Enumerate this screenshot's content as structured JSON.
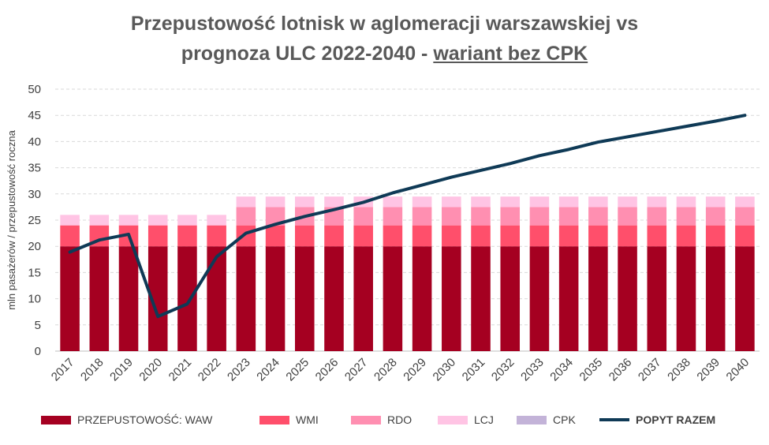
{
  "header": {
    "title_line1": "Przepustowość lotnisk w aglomeracji warszawskiej vs",
    "title_line2_prefix": "prognoza ULC 2022-2040 - ",
    "title_line2_underlined": "wariant bez CPK"
  },
  "chart_data": {
    "type": "bar",
    "stacked": true,
    "title": "Przepustowość lotnisk w aglomeracji warszawskiej vs prognoza ULC 2022-2040 - wariant bez CPK",
    "xlabel": "",
    "ylabel": "mln pasażerów / przepustowość roczna",
    "ylim": [
      0,
      50
    ],
    "yticks": [
      0,
      5,
      10,
      15,
      20,
      25,
      30,
      35,
      40,
      45,
      50
    ],
    "grid": true,
    "legend_position": "bottom",
    "categories": [
      "2017",
      "2018",
      "2019",
      "2020",
      "2021",
      "2022",
      "2023",
      "2024",
      "2025",
      "2026",
      "2027",
      "2028",
      "2029",
      "2030",
      "2031",
      "2032",
      "2033",
      "2034",
      "2035",
      "2036",
      "2037",
      "2038",
      "2039",
      "2040"
    ],
    "series": [
      {
        "name": "PRZEPUSTOWOŚĆ: WAW",
        "kind": "bar",
        "color": "#A50021",
        "values": [
          20,
          20,
          20,
          20,
          20,
          20,
          20,
          20,
          20,
          20,
          20,
          20,
          20,
          20,
          20,
          20,
          20,
          20,
          20,
          20,
          20,
          20,
          20,
          20
        ]
      },
      {
        "name": "WMI",
        "kind": "bar",
        "color": "#FF4F6B",
        "values": [
          4,
          4,
          4,
          4,
          4,
          4,
          4,
          4,
          4,
          4,
          4,
          4,
          4,
          4,
          4,
          4,
          4,
          4,
          4,
          4,
          4,
          4,
          4,
          4
        ]
      },
      {
        "name": "RDO",
        "kind": "bar",
        "color": "#FF8FB1",
        "values": [
          0,
          0,
          0,
          0,
          0,
          0,
          3.5,
          3.5,
          3.5,
          3.5,
          3.5,
          3.5,
          3.5,
          3.5,
          3.5,
          3.5,
          3.5,
          3.5,
          3.5,
          3.5,
          3.5,
          3.5,
          3.5,
          3.5
        ]
      },
      {
        "name": "LCJ",
        "kind": "bar",
        "color": "#FFC4E4",
        "values": [
          2,
          2,
          2,
          2,
          2,
          2,
          2,
          2,
          2,
          2,
          2,
          2,
          2,
          2,
          2,
          2,
          2,
          2,
          2,
          2,
          2,
          2,
          2,
          2
        ]
      },
      {
        "name": "CPK",
        "kind": "bar",
        "color": "#C3B3D8",
        "values": [
          0,
          0,
          0,
          0,
          0,
          0,
          0,
          0,
          0,
          0,
          0,
          0,
          0,
          0,
          0,
          0,
          0,
          0,
          0,
          0,
          0,
          0,
          0,
          0
        ]
      },
      {
        "name": "POPYT RAZEM",
        "kind": "line",
        "color": "#0F3A56",
        "values": [
          18.9,
          21.2,
          22.3,
          6.6,
          9.0,
          18.0,
          22.5,
          24.2,
          25.7,
          27.0,
          28.4,
          30.2,
          31.7,
          33.2,
          34.5,
          35.8,
          37.3,
          38.5,
          39.9,
          40.9,
          41.9,
          42.9,
          43.9,
          45.0
        ]
      }
    ]
  }
}
